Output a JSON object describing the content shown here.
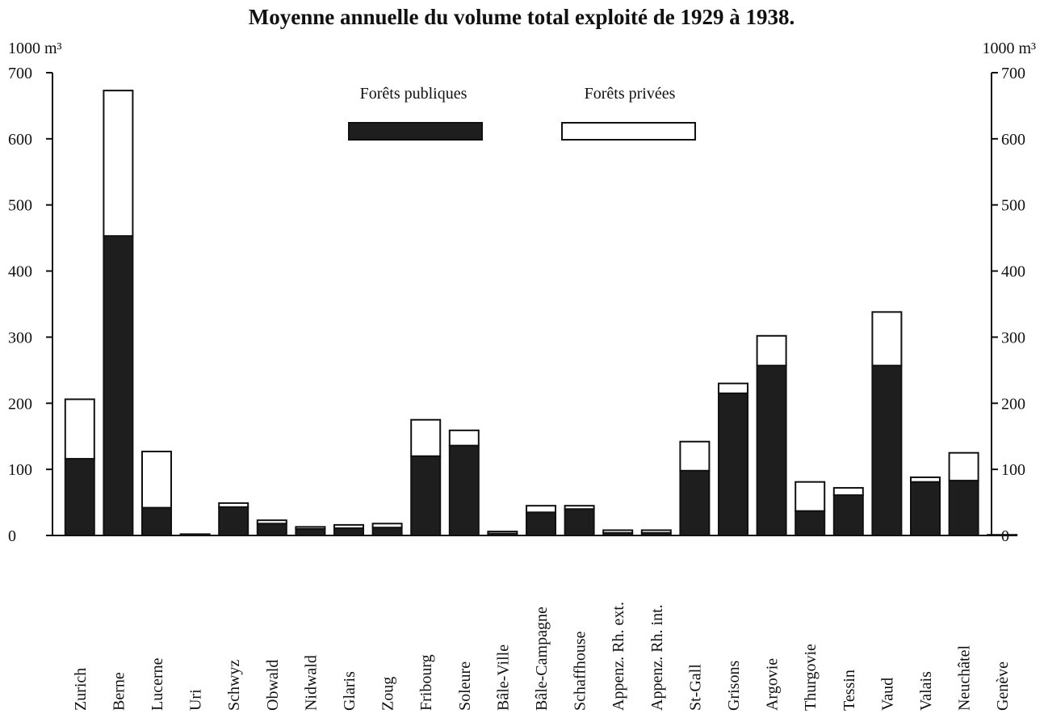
{
  "chart_data": {
    "type": "bar",
    "stacked": true,
    "title": "Moyenne annuelle du volume total exploité de 1929 à 1938.",
    "y_label": "1000 m³",
    "y2_label": "1000 m³",
    "categories": [
      "Zurich",
      "Berne",
      "Lucerne",
      "Uri",
      "Schwyz",
      "Obwald",
      "Nidwald",
      "Glaris",
      "Zoug",
      "Fribourg",
      "Soleure",
      "Bâle-Ville",
      "Bâle-Campagne",
      "Schaffhouse",
      "Appenz. Rh. ext.",
      "Appenz. Rh. int.",
      "St-Gall",
      "Grisons",
      "Argovie",
      "Thurgovie",
      "Tessin",
      "Vaud",
      "Valais",
      "Neuchâtel",
      "Genève"
    ],
    "series": [
      {
        "name": "Forêts publiques",
        "color": "#1e1e1e",
        "values": [
          116,
          453,
          42,
          1,
          43,
          18,
          10,
          11,
          12,
          120,
          136,
          3,
          35,
          40,
          4,
          4,
          98,
          215,
          257,
          37,
          61,
          257,
          81,
          83,
          1
        ]
      },
      {
        "name": "Forêts privées",
        "color": "#ffffff",
        "values": [
          90,
          220,
          85,
          1,
          6,
          5,
          3,
          5,
          6,
          55,
          23,
          3,
          10,
          5,
          4,
          4,
          44,
          15,
          45,
          44,
          11,
          81,
          7,
          42,
          0
        ]
      }
    ],
    "ylim": [
      0,
      700
    ],
    "yticks": [
      0,
      100,
      200,
      300,
      400,
      500,
      600,
      700
    ],
    "y2lim": [
      0,
      700
    ],
    "y2ticks": [
      0,
      100,
      200,
      300,
      400,
      500,
      600,
      700
    ],
    "grid": false
  }
}
